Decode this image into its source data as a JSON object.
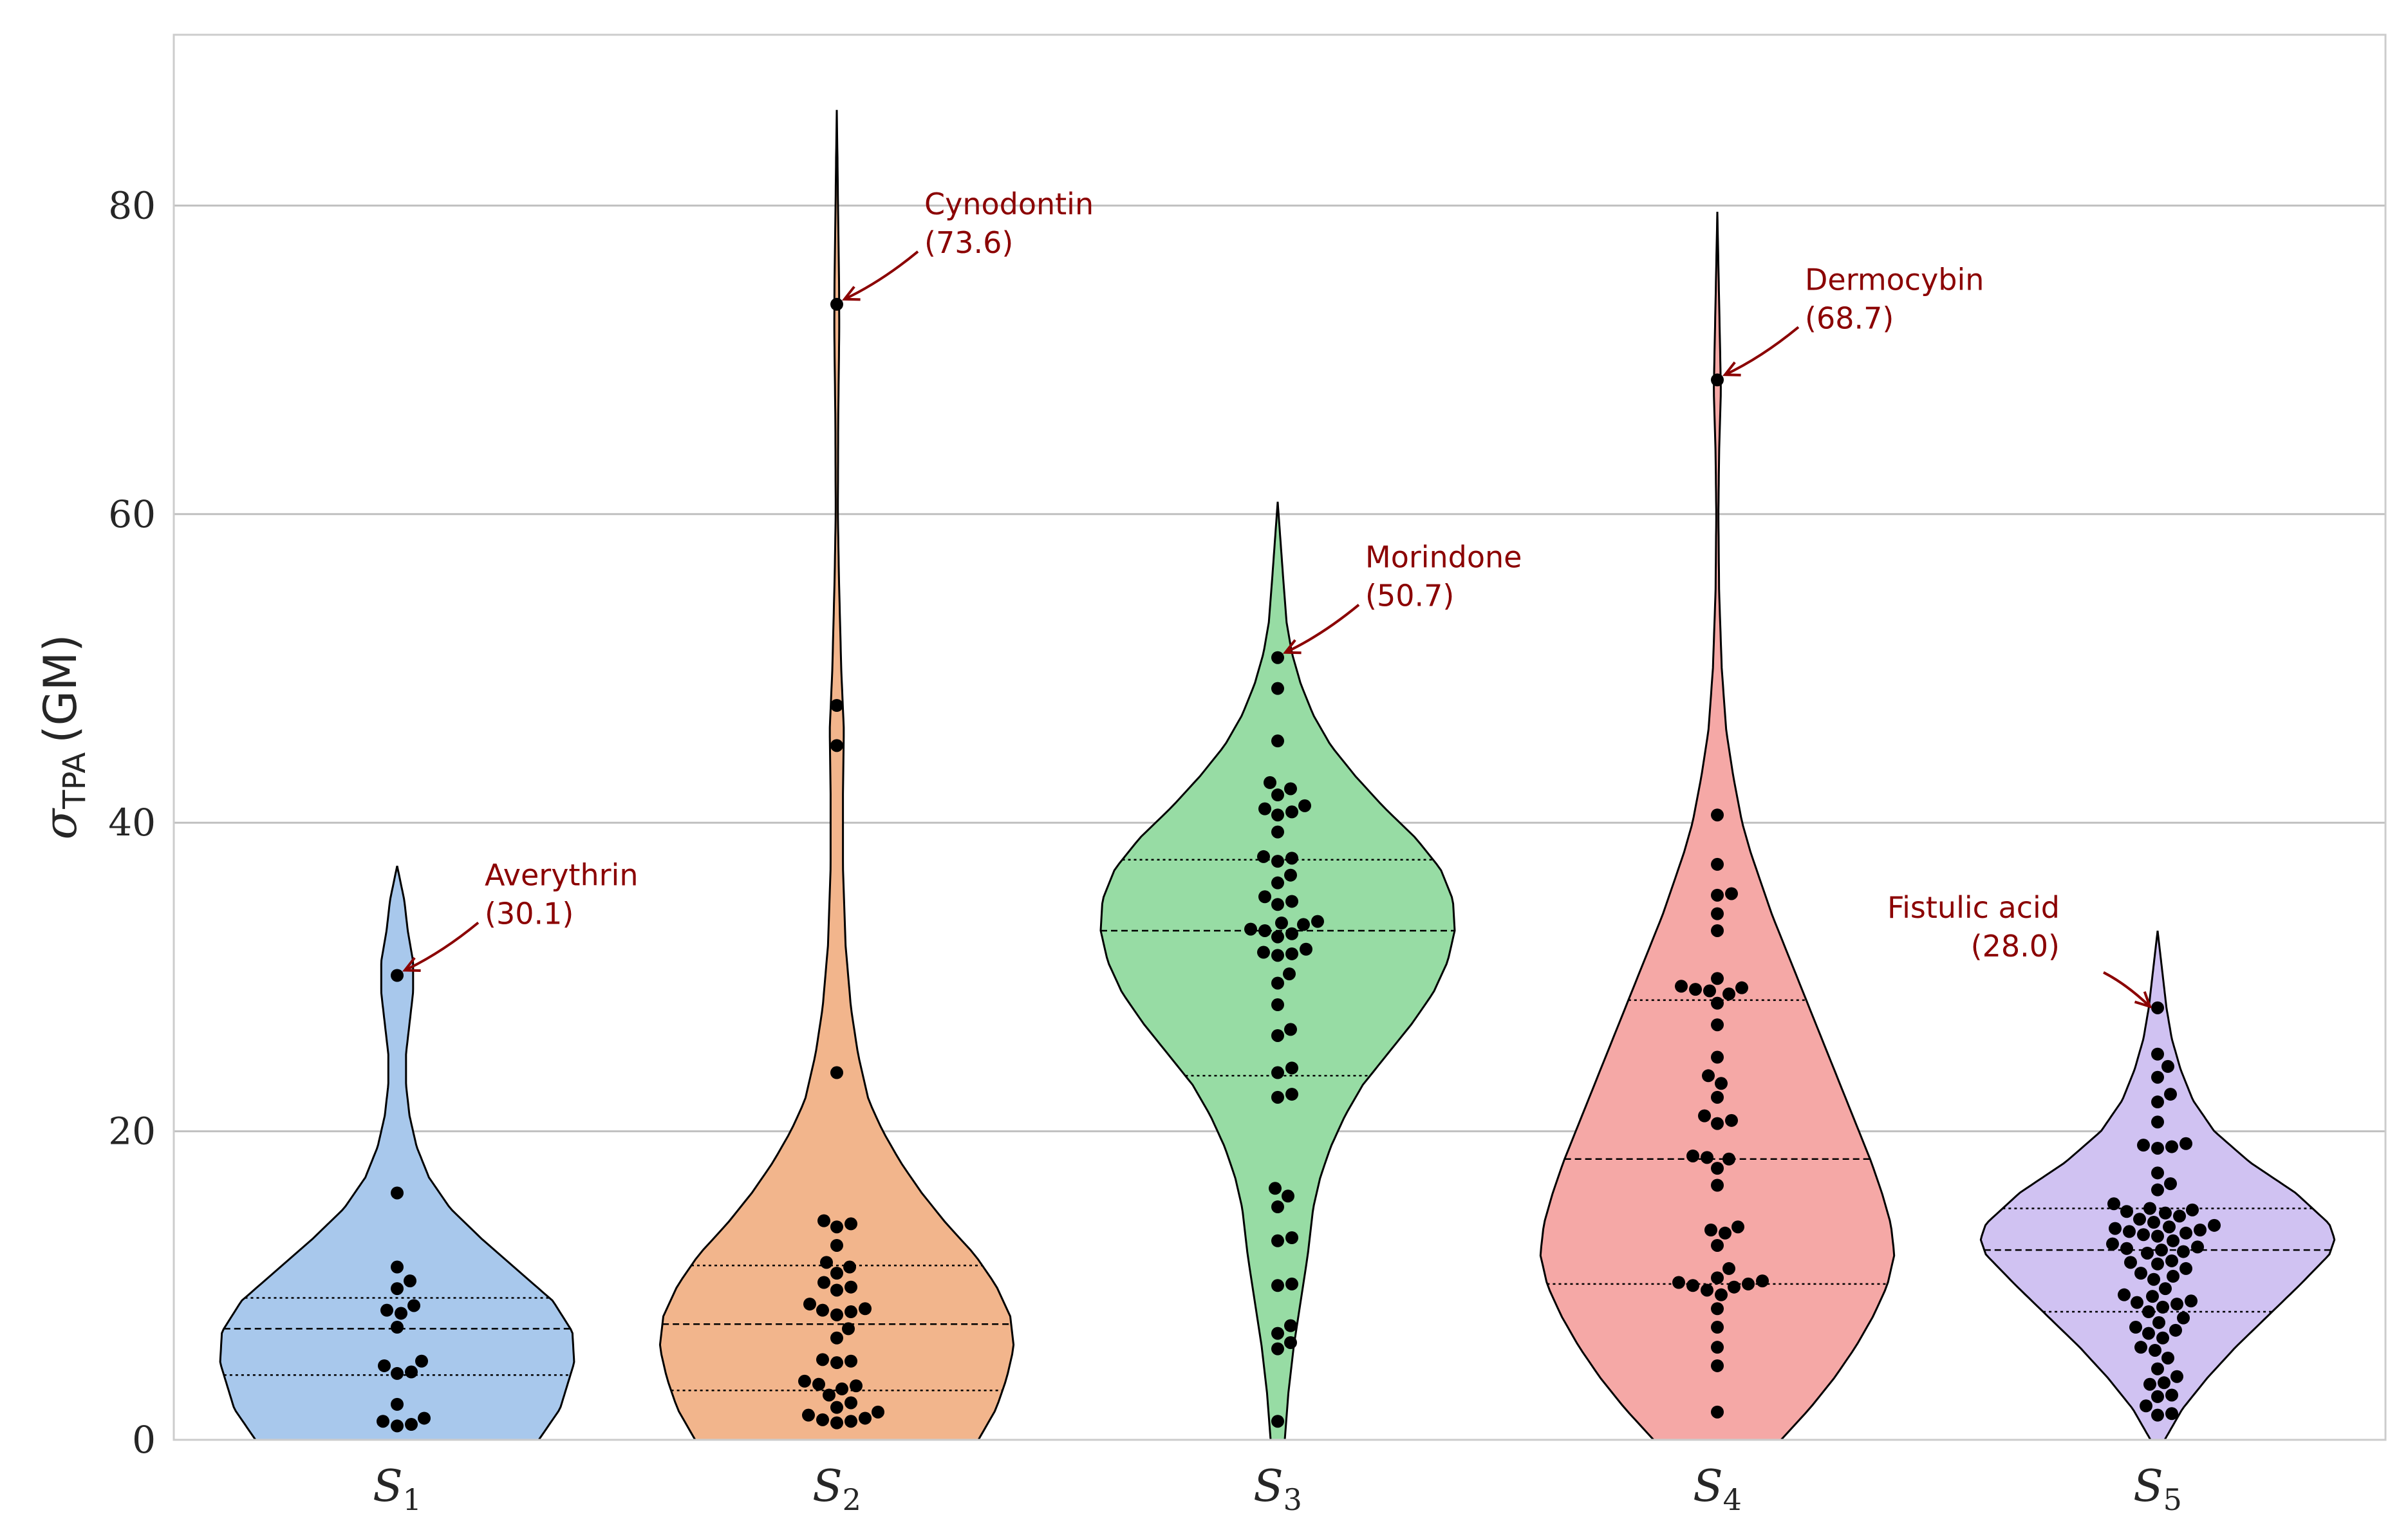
{
  "chart_data": {
    "type": "violin",
    "title": "",
    "xlabel": "",
    "ylabel": "σTPA (GM)",
    "ylabel_symbol": "σ",
    "ylabel_subscript": "TPA",
    "ylabel_unit": "(GM)",
    "ylim": [
      0,
      91
    ],
    "yticks": [
      0,
      20,
      40,
      60,
      80
    ],
    "grid": "horizontal",
    "categories": [
      {
        "label": "S",
        "sub": "1"
      },
      {
        "label": "S",
        "sub": "2"
      },
      {
        "label": "S",
        "sub": "3"
      },
      {
        "label": "S",
        "sub": "4"
      },
      {
        "label": "S",
        "sub": "5"
      }
    ],
    "series": [
      {
        "name": "S1",
        "color": "#a8c8ec",
        "range": [
          0,
          37.2
        ],
        "quartiles": {
          "q1": 4.2,
          "median": 7.2,
          "q3": 9.2
        },
        "profile": [
          [
            0,
            0.8
          ],
          [
            2,
            0.92
          ],
          [
            5,
            1.0
          ],
          [
            7,
            0.99
          ],
          [
            9,
            0.88
          ],
          [
            11,
            0.68
          ],
          [
            13,
            0.48
          ],
          [
            15,
            0.3
          ],
          [
            17,
            0.18
          ],
          [
            19,
            0.11
          ],
          [
            21,
            0.07
          ],
          [
            23,
            0.05
          ],
          [
            25,
            0.05
          ],
          [
            27,
            0.07
          ],
          [
            29,
            0.09
          ],
          [
            31,
            0.09
          ],
          [
            33,
            0.06
          ],
          [
            35,
            0.04
          ],
          [
            37.2,
            0.0
          ]
        ],
        "points": [
          30.1,
          16.0,
          11.2,
          10.3,
          9.8,
          8.7,
          8.4,
          8.2,
          7.3,
          5.1,
          4.8,
          4.4,
          4.3,
          2.3,
          1.4,
          1.2,
          1.0,
          0.9
        ]
      },
      {
        "name": "S2",
        "color": "#f2b58c",
        "range": [
          0,
          86.2
        ],
        "quartiles": {
          "q1": 3.2,
          "median": 7.5,
          "q3": 11.3
        },
        "profile": [
          [
            0,
            0.8
          ],
          [
            2,
            0.9
          ],
          [
            4,
            0.96
          ],
          [
            6,
            1.0
          ],
          [
            8,
            0.98
          ],
          [
            10,
            0.9
          ],
          [
            12,
            0.78
          ],
          [
            14,
            0.62
          ],
          [
            16,
            0.48
          ],
          [
            18,
            0.36
          ],
          [
            20,
            0.26
          ],
          [
            22,
            0.18
          ],
          [
            25,
            0.12
          ],
          [
            28,
            0.08
          ],
          [
            32,
            0.05
          ],
          [
            37,
            0.035
          ],
          [
            42,
            0.035
          ],
          [
            46,
            0.04
          ],
          [
            50,
            0.025
          ],
          [
            56,
            0.012
          ],
          [
            60,
            0.006
          ],
          [
            66,
            0.008
          ],
          [
            72,
            0.014
          ],
          [
            75,
            0.013
          ],
          [
            79,
            0.008
          ],
          [
            83,
            0.004
          ],
          [
            86.2,
            0.0
          ]
        ],
        "points": [
          73.6,
          47.6,
          45.0,
          23.8,
          14.2,
          14.0,
          13.8,
          12.6,
          11.5,
          11.2,
          10.8,
          10.2,
          9.9,
          9.7,
          8.8,
          8.5,
          8.4,
          8.3,
          8.1,
          7.2,
          6.6,
          5.2,
          5.1,
          5.0,
          3.8,
          3.6,
          3.5,
          3.3,
          2.9,
          2.4,
          2.1,
          1.8,
          1.6,
          1.4,
          1.3,
          1.2,
          1.1
        ]
      },
      {
        "name": "S3",
        "color": "#97dca4",
        "range": [
          0,
          60.8
        ],
        "quartiles": {
          "q1": 23.6,
          "median": 33.0,
          "q3": 37.6
        },
        "profile": [
          [
            0,
            0.04
          ],
          [
            3,
            0.06
          ],
          [
            6,
            0.09
          ],
          [
            9,
            0.13
          ],
          [
            12,
            0.17
          ],
          [
            15,
            0.2
          ],
          [
            17,
            0.24
          ],
          [
            19,
            0.3
          ],
          [
            21,
            0.38
          ],
          [
            23,
            0.48
          ],
          [
            25,
            0.62
          ],
          [
            27,
            0.76
          ],
          [
            29,
            0.88
          ],
          [
            31,
            0.96
          ],
          [
            33,
            1.0
          ],
          [
            35,
            0.99
          ],
          [
            37,
            0.92
          ],
          [
            39,
            0.78
          ],
          [
            41,
            0.6
          ],
          [
            43,
            0.44
          ],
          [
            45,
            0.3
          ],
          [
            47,
            0.2
          ],
          [
            49,
            0.13
          ],
          [
            51,
            0.08
          ],
          [
            53,
            0.05
          ],
          [
            56,
            0.03
          ],
          [
            60.8,
            0.0
          ]
        ],
        "points": [
          50.7,
          48.7,
          45.3,
          42.6,
          42.2,
          41.8,
          41.1,
          40.9,
          40.7,
          40.5,
          39.4,
          37.8,
          37.7,
          37.5,
          36.6,
          36.1,
          35.2,
          34.9,
          34.7,
          33.6,
          33.5,
          33.4,
          33.1,
          33.0,
          32.8,
          32.6,
          31.8,
          31.6,
          31.5,
          31.4,
          30.2,
          29.6,
          28.2,
          26.6,
          26.2,
          24.1,
          23.8,
          22.4,
          22.2,
          16.3,
          15.8,
          15.1,
          13.1,
          12.9,
          10.1,
          10.0,
          7.4,
          6.9,
          6.3,
          5.9,
          1.2
        ]
      },
      {
        "name": "S4",
        "color": "#f5a8a6",
        "range": [
          0,
          79.6
        ],
        "quartiles": {
          "q1": 10.1,
          "median": 18.2,
          "q3": 28.5
        },
        "profile": [
          [
            0,
            0.36
          ],
          [
            2,
            0.52
          ],
          [
            4,
            0.66
          ],
          [
            6,
            0.78
          ],
          [
            8,
            0.88
          ],
          [
            10,
            0.96
          ],
          [
            12,
            1.0
          ],
          [
            14,
            0.98
          ],
          [
            16,
            0.93
          ],
          [
            18,
            0.87
          ],
          [
            20,
            0.8
          ],
          [
            22,
            0.73
          ],
          [
            24,
            0.66
          ],
          [
            26,
            0.59
          ],
          [
            28,
            0.52
          ],
          [
            30,
            0.45
          ],
          [
            32,
            0.38
          ],
          [
            34,
            0.31
          ],
          [
            36,
            0.25
          ],
          [
            38,
            0.19
          ],
          [
            40,
            0.14
          ],
          [
            43,
            0.09
          ],
          [
            46,
            0.05
          ],
          [
            50,
            0.025
          ],
          [
            55,
            0.01
          ],
          [
            60,
            0.006
          ],
          [
            64,
            0.01
          ],
          [
            68,
            0.02
          ],
          [
            71,
            0.015
          ],
          [
            75,
            0.008
          ],
          [
            79.6,
            0.0
          ]
        ],
        "points": [
          68.7,
          40.5,
          37.3,
          35.4,
          35.3,
          34.1,
          33.0,
          29.9,
          29.4,
          29.3,
          29.2,
          29.1,
          28.9,
          28.3,
          26.9,
          24.8,
          23.6,
          23.1,
          22.2,
          21.0,
          20.7,
          20.5,
          18.4,
          18.3,
          18.2,
          17.6,
          16.5,
          13.8,
          13.6,
          13.4,
          12.6,
          11.1,
          10.5,
          10.3,
          10.2,
          10.1,
          10.0,
          9.9,
          9.7,
          9.4,
          8.5,
          7.3,
          6.0,
          4.8,
          1.8
        ]
      },
      {
        "name": "S5",
        "color": "#d0c2f2",
        "range": [
          0,
          33.0
        ],
        "quartiles": {
          "q1": 8.3,
          "median": 12.3,
          "q3": 15.0
        },
        "profile": [
          [
            0,
            0.04
          ],
          [
            2,
            0.14
          ],
          [
            4,
            0.28
          ],
          [
            6,
            0.44
          ],
          [
            8,
            0.62
          ],
          [
            10,
            0.8
          ],
          [
            12,
            0.97
          ],
          [
            13,
            1.0
          ],
          [
            14,
            0.97
          ],
          [
            16,
            0.78
          ],
          [
            18,
            0.52
          ],
          [
            20,
            0.32
          ],
          [
            22,
            0.2
          ],
          [
            24,
            0.13
          ],
          [
            26,
            0.08
          ],
          [
            28,
            0.05
          ],
          [
            30,
            0.03
          ],
          [
            33.0,
            0.0
          ]
        ],
        "points": [
          28.0,
          25.0,
          24.2,
          23.5,
          22.4,
          21.9,
          20.6,
          19.2,
          19.1,
          19.0,
          18.9,
          17.3,
          16.6,
          16.2,
          15.3,
          15.0,
          14.9,
          14.8,
          14.7,
          14.5,
          14.3,
          14.1,
          13.9,
          13.8,
          13.7,
          13.6,
          13.5,
          13.4,
          13.3,
          13.2,
          12.9,
          12.7,
          12.5,
          12.4,
          12.3,
          12.2,
          12.1,
          11.6,
          11.5,
          11.4,
          11.1,
          10.8,
          10.6,
          10.4,
          9.8,
          9.4,
          9.3,
          9.0,
          8.9,
          8.8,
          8.6,
          8.3,
          7.9,
          7.6,
          7.3,
          7.1,
          6.9,
          6.6,
          6.0,
          5.8,
          5.3,
          4.6,
          4.1,
          3.7,
          3.6,
          2.9,
          2.8,
          2.2,
          1.7,
          1.6
        ]
      }
    ],
    "annotations": [
      {
        "series": 0,
        "name": "Averythrin",
        "value_label": "(30.1)",
        "value": 30.1,
        "anchor": "start"
      },
      {
        "series": 1,
        "name": "Cynodontin",
        "value_label": "(73.6)",
        "value": 73.6,
        "anchor": "start"
      },
      {
        "series": 2,
        "name": "Morindone",
        "value_label": "(50.7)",
        "value": 50.7,
        "anchor": "start"
      },
      {
        "series": 3,
        "name": "Dermocybin",
        "value_label": "(68.7)",
        "value": 68.7,
        "anchor": "start"
      },
      {
        "series": 4,
        "name": "Fistulic acid",
        "value_label": "(28.0)",
        "value": 28.0,
        "anchor": "end"
      }
    ],
    "colors": {
      "annotation": "#8b0000",
      "grid": "#c0c0c0",
      "frame": "#cccccc",
      "points": "#000000",
      "outline": "#000000"
    }
  }
}
